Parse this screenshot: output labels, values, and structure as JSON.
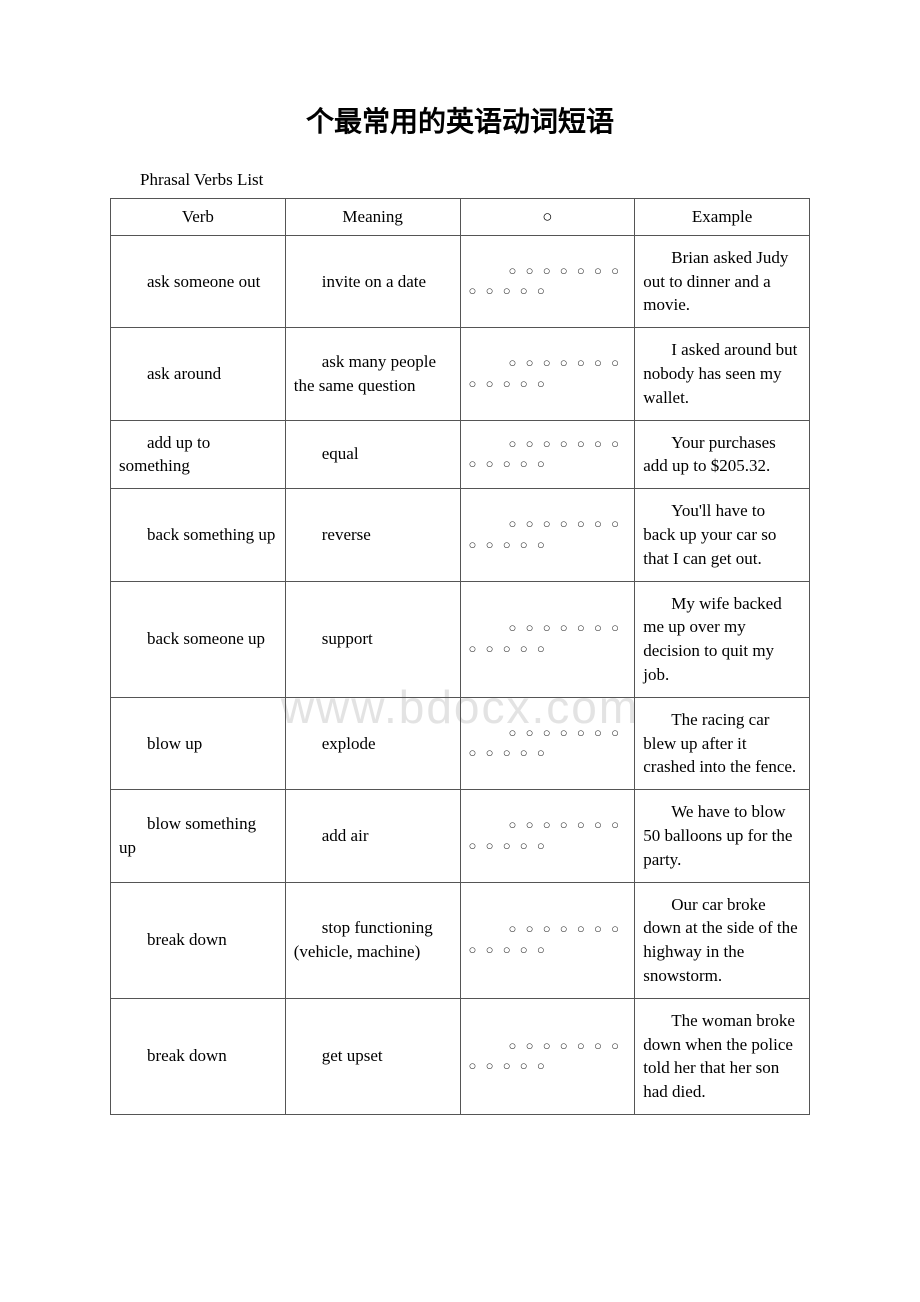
{
  "title": "个最常用的英语动词短语",
  "list_label": "Phrasal Verbs List",
  "watermark": "www.bdocx.com",
  "headers": {
    "verb": "Verb",
    "meaning": "Meaning",
    "circle": "○",
    "example": "Example"
  },
  "circle_pattern": "○ ○ ○ ○ ○ ○  ○ ○ ○ ○ ○ ○",
  "rows": [
    {
      "verb": "ask someone out",
      "meaning": "invite on a date",
      "example": "Brian asked Judy out to dinner and a movie."
    },
    {
      "verb": "ask around",
      "meaning": "ask many people the same question",
      "example": "I asked around but nobody has seen my wallet."
    },
    {
      "verb": "add up to something",
      "meaning": "equal",
      "example": "Your purchases add up to $205.32."
    },
    {
      "verb": "back something up",
      "meaning": "reverse",
      "example": "You'll have to back up your car so that I can get out."
    },
    {
      "verb": "back someone up",
      "meaning": "support",
      "example": "My wife backed me up over my decision to quit my job."
    },
    {
      "verb": "blow up",
      "meaning": "explode",
      "example": "The racing car blew up after it crashed into the fence."
    },
    {
      "verb": "blow something up",
      "meaning": "add air",
      "example": "We have to blow 50 balloons up for the party."
    },
    {
      "verb": "break down",
      "meaning": "stop functioning (vehicle, machine)",
      "example": "Our car broke down at the side of the highway in the snowstorm."
    },
    {
      "verb": "break down",
      "meaning": "get upset",
      "example": "The woman broke down when the police told her that her son had died."
    }
  ]
}
